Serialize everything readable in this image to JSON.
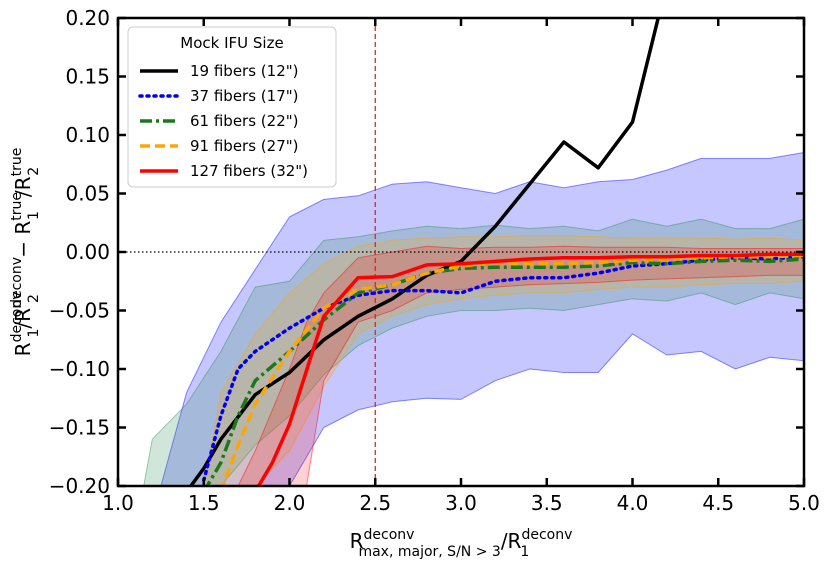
{
  "chart_data": {
    "type": "line",
    "title": "",
    "xlim": [
      1.0,
      5.0
    ],
    "ylim": [
      -0.2,
      0.2
    ],
    "xticks": [
      "1.0",
      "1.5",
      "2.0",
      "2.5",
      "3.0",
      "3.5",
      "4.0",
      "4.5",
      "5.0"
    ],
    "yticks": [
      "0.20",
      "0.15",
      "0.10",
      "0.05",
      "0.00",
      "−0.05",
      "−0.10",
      "−0.15",
      "−0.20"
    ],
    "xlabel": {
      "main": "R",
      "sup": "deconv",
      "sub": "max, major, S/N > 3",
      "rest": "/R",
      "sup2": "deconv",
      "sub2": "1"
    },
    "ylabel": {
      "p1": "R",
      "p1sup": "deconv",
      "p1sub": "1",
      "p2": "/R",
      "p2sup": "deconv",
      "p2sub": "2",
      "minus": " − R",
      "p3sup": "true",
      "p3sub": "1",
      "p4": "/R",
      "p4sup": "true",
      "p4sub": "2"
    },
    "vline": {
      "x": 2.5,
      "color": "#d62728"
    },
    "hline": {
      "y": 0.0
    },
    "legend": {
      "title": "Mock IFU Size",
      "location": "top-left"
    },
    "series": [
      {
        "name": "19 fibers (12\")",
        "color": "#000000",
        "style": "solid",
        "x": [
          1.4,
          1.5,
          1.6,
          1.8,
          2.0,
          2.2,
          2.4,
          2.6,
          2.8,
          3.0,
          3.2,
          3.4,
          3.6,
          3.8,
          4.0,
          4.15
        ],
        "y": [
          -0.205,
          -0.185,
          -0.16,
          -0.122,
          -0.103,
          -0.075,
          -0.055,
          -0.04,
          -0.02,
          -0.008,
          0.022,
          0.058,
          0.094,
          0.072,
          0.111,
          0.2
        ]
      },
      {
        "name": "37 fibers (17\")",
        "color": "#0000ee",
        "style": "dotted",
        "x": [
          1.5,
          1.6,
          1.7,
          1.8,
          2.0,
          2.2,
          2.4,
          2.6,
          2.8,
          3.0,
          3.2,
          3.4,
          3.6,
          3.8,
          4.0,
          4.2,
          4.4,
          4.6,
          4.8,
          5.0
        ],
        "y": [
          -0.195,
          -0.14,
          -0.1,
          -0.085,
          -0.065,
          -0.048,
          -0.037,
          -0.033,
          -0.033,
          -0.035,
          -0.025,
          -0.022,
          -0.022,
          -0.018,
          -0.012,
          -0.01,
          -0.007,
          -0.005,
          -0.006,
          -0.004
        ]
      },
      {
        "name": "61 fibers (22\")",
        "color": "#1a7a1a",
        "style": "dashdot",
        "x": [
          1.5,
          1.6,
          1.7,
          1.8,
          2.0,
          2.2,
          2.4,
          2.6,
          2.8,
          3.0,
          3.2,
          3.4,
          3.6,
          3.8,
          4.0,
          4.2,
          4.4,
          4.6,
          4.8,
          5.0
        ],
        "y": [
          -0.205,
          -0.18,
          -0.14,
          -0.11,
          -0.085,
          -0.058,
          -0.035,
          -0.028,
          -0.018,
          -0.014,
          -0.013,
          -0.013,
          -0.013,
          -0.012,
          -0.009,
          -0.01,
          -0.008,
          -0.007,
          -0.008,
          -0.006
        ]
      },
      {
        "name": "91 fibers (27\")",
        "color": "#ffa500",
        "style": "dashed",
        "x": [
          1.6,
          1.65,
          1.7,
          1.8,
          2.0,
          2.2,
          2.4,
          2.6,
          2.8,
          3.0,
          3.2,
          3.4,
          3.6,
          3.8,
          4.0,
          4.2,
          4.4,
          4.6,
          4.8,
          5.0
        ],
        "y": [
          -0.205,
          -0.185,
          -0.165,
          -0.13,
          -0.085,
          -0.048,
          -0.032,
          -0.028,
          -0.018,
          -0.012,
          -0.009,
          -0.01,
          -0.01,
          -0.009,
          -0.007,
          -0.006,
          -0.005,
          -0.004,
          -0.004,
          -0.003
        ]
      },
      {
        "name": "127 fibers (32\")",
        "color": "#ff0000",
        "style": "solid",
        "x": [
          1.8,
          1.9,
          2.0,
          2.2,
          2.4,
          2.6,
          2.8,
          3.0,
          3.2,
          3.4,
          3.6,
          3.8,
          4.0,
          4.2,
          4.4,
          4.6,
          4.8,
          5.0
        ],
        "y": [
          -0.205,
          -0.18,
          -0.147,
          -0.055,
          -0.022,
          -0.021,
          -0.011,
          -0.01,
          -0.008,
          -0.006,
          -0.005,
          -0.005,
          -0.004,
          -0.004,
          -0.003,
          -0.003,
          -0.002,
          -0.002
        ]
      }
    ],
    "bands": [
      {
        "name": "19 fibers band",
        "color": "#0000ff",
        "opacity": 0.22,
        "x": [
          1.25,
          1.4,
          1.6,
          1.8,
          2.0,
          2.2,
          2.4,
          2.6,
          2.8,
          3.0,
          3.2,
          3.4,
          3.6,
          3.8,
          4.0,
          4.2,
          4.4,
          4.6,
          4.8,
          5.0
        ],
        "upper": [
          -0.2,
          -0.12,
          -0.06,
          -0.015,
          0.03,
          0.045,
          0.048,
          0.058,
          0.06,
          0.055,
          0.05,
          0.06,
          0.055,
          0.06,
          0.062,
          0.07,
          0.08,
          0.08,
          0.08,
          0.085
        ],
        "lower": [
          -0.2,
          -0.2,
          -0.2,
          -0.2,
          -0.2,
          -0.15,
          -0.135,
          -0.128,
          -0.125,
          -0.126,
          -0.11,
          -0.1,
          -0.103,
          -0.103,
          -0.07,
          -0.088,
          -0.085,
          -0.1,
          -0.09,
          -0.093
        ]
      },
      {
        "name": "37 fibers band",
        "color": "#2e8b57",
        "opacity": 0.22,
        "x": [
          1.15,
          1.2,
          1.4,
          1.6,
          1.8,
          2.0,
          2.2,
          2.4,
          2.6,
          2.8,
          3.0,
          3.2,
          3.4,
          3.6,
          3.8,
          4.0,
          4.2,
          4.4,
          4.6,
          4.8,
          5.0
        ],
        "upper": [
          -0.2,
          -0.16,
          -0.13,
          -0.085,
          -0.03,
          -0.025,
          0.01,
          0.013,
          0.018,
          0.022,
          0.02,
          0.023,
          0.02,
          0.022,
          0.018,
          0.028,
          0.022,
          0.028,
          0.02,
          0.02,
          0.028
        ],
        "lower": [
          -0.2,
          -0.2,
          -0.2,
          -0.2,
          -0.165,
          -0.14,
          -0.105,
          -0.08,
          -0.065,
          -0.055,
          -0.05,
          -0.05,
          -0.048,
          -0.05,
          -0.045,
          -0.04,
          -0.042,
          -0.035,
          -0.045,
          -0.035,
          -0.04
        ]
      },
      {
        "name": "91 fibers band",
        "color": "#ffa500",
        "opacity": 0.22,
        "x": [
          1.5,
          1.6,
          1.8,
          2.0,
          2.2,
          2.4,
          2.6,
          2.8,
          3.0,
          3.2,
          3.4,
          3.6,
          3.8,
          4.0,
          4.2,
          4.4,
          4.6,
          4.8,
          5.0
        ],
        "upper": [
          -0.2,
          -0.12,
          -0.07,
          -0.035,
          -0.01,
          0.005,
          0.01,
          0.012,
          0.013,
          0.013,
          0.014,
          0.014,
          0.013,
          0.012,
          0.012,
          0.012,
          0.011,
          0.012,
          0.01
        ],
        "lower": [
          -0.2,
          -0.2,
          -0.2,
          -0.17,
          -0.115,
          -0.07,
          -0.055,
          -0.045,
          -0.04,
          -0.037,
          -0.035,
          -0.035,
          -0.032,
          -0.03,
          -0.03,
          -0.028,
          -0.027,
          -0.027,
          -0.025
        ]
      },
      {
        "name": "127 fibers band",
        "color": "#ff0000",
        "opacity": 0.18,
        "x": [
          1.7,
          1.8,
          2.0,
          2.1,
          2.2,
          2.4,
          2.6,
          2.8,
          3.0,
          3.2,
          3.4,
          3.6,
          3.8,
          4.0,
          4.2,
          4.4,
          4.6,
          4.8,
          5.0
        ],
        "upper": [
          -0.2,
          -0.17,
          -0.1,
          -0.06,
          -0.035,
          -0.005,
          0.0,
          0.005,
          0.003,
          0.004,
          0.004,
          0.005,
          0.004,
          0.004,
          0.004,
          0.003,
          0.003,
          0.003,
          0.003
        ],
        "lower": [
          -0.2,
          -0.2,
          -0.2,
          -0.2,
          -0.11,
          -0.06,
          -0.05,
          -0.035,
          -0.032,
          -0.03,
          -0.028,
          -0.027,
          -0.026,
          -0.024,
          -0.023,
          -0.022,
          -0.021,
          -0.02,
          -0.02
        ]
      }
    ]
  }
}
